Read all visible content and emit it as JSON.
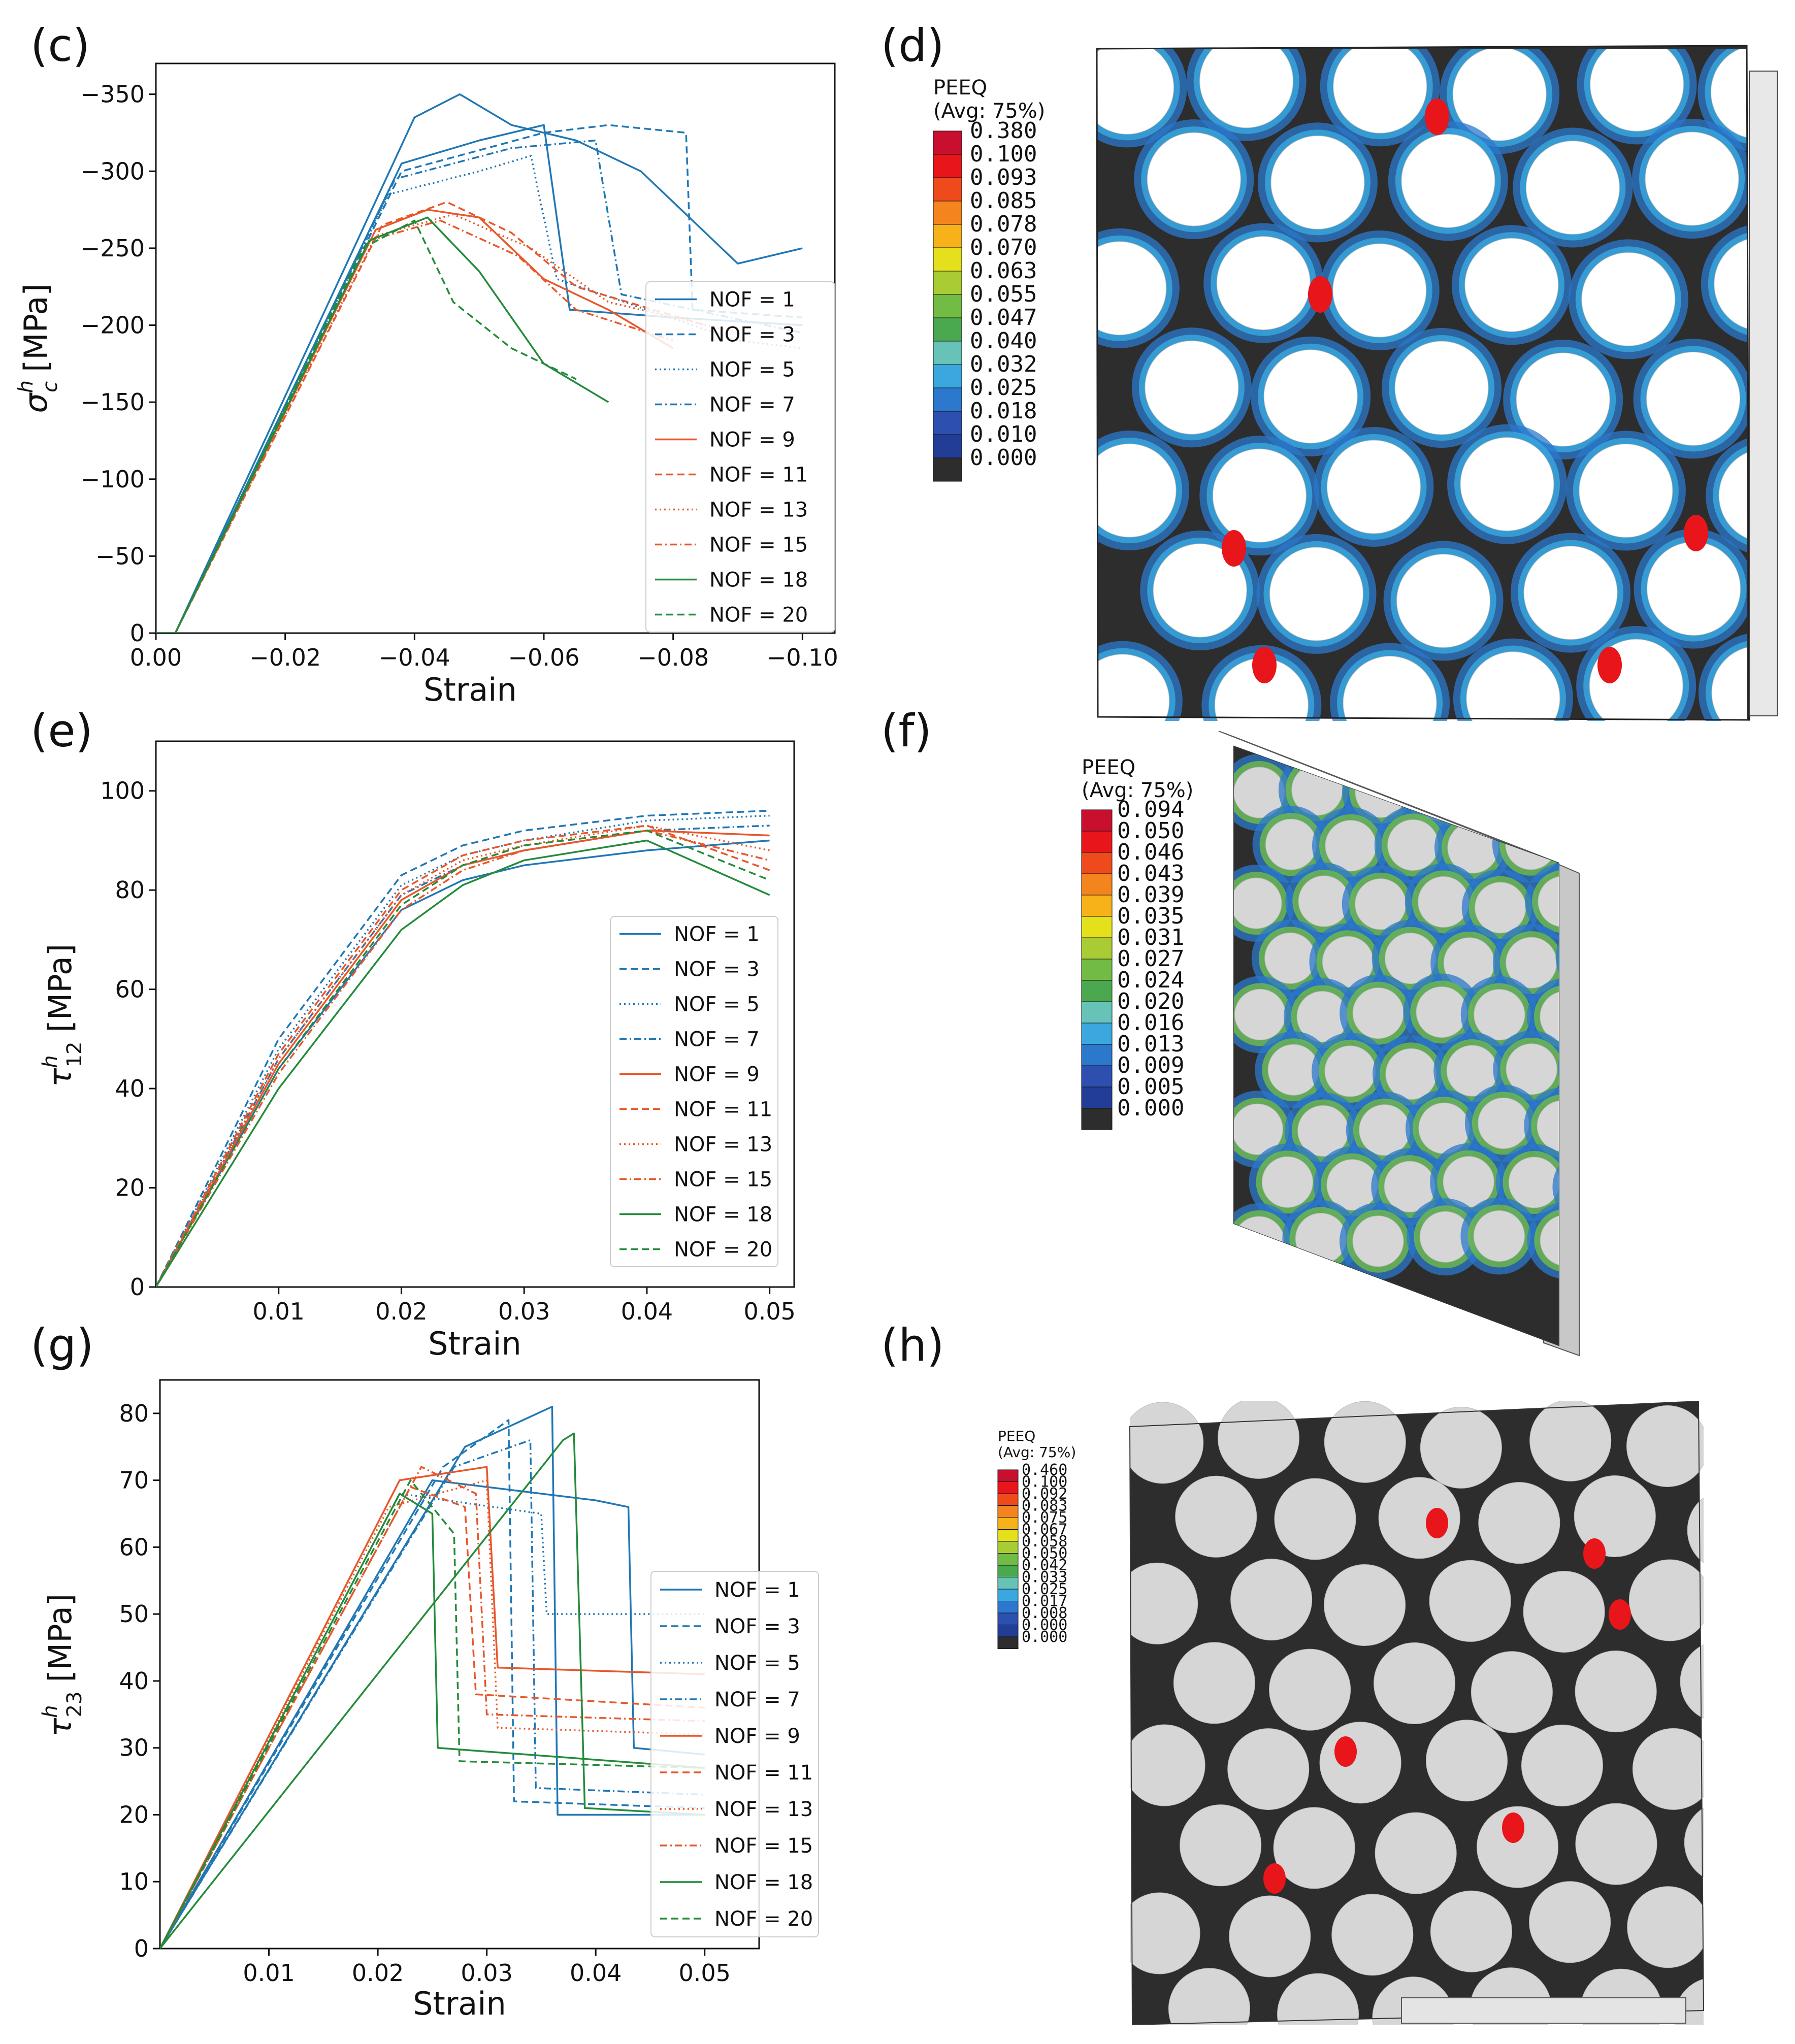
{
  "colors": {
    "blue": "#1f77b4",
    "orange": "#e8562a",
    "green": "#238b3a",
    "matrix_dark": "#2d2d2d",
    "fiber_white": "#ffffff",
    "fiber_gray": "#d6d6d6"
  },
  "chart_data": [
    {
      "panel": "(c)",
      "type": "line",
      "xlabel": "Strain",
      "ylabel": "σ",
      "ylabel_sup": "h",
      "ylabel_sub": "c",
      "ylabel_unit": "[MPa]",
      "xlim": [
        0.0,
        -0.105
      ],
      "ylim": [
        0,
        -370
      ],
      "xticks": [
        0.0,
        -0.02,
        -0.04,
        -0.06,
        -0.08,
        -0.1
      ],
      "xtick_labels": [
        "0.00",
        "−0.02",
        "−0.04",
        "−0.06",
        "−0.08",
        "−0.10"
      ],
      "yticks": [
        0,
        -50,
        -100,
        -150,
        -200,
        -250,
        -300,
        -350
      ],
      "ytick_labels": [
        "0",
        "−50",
        "−100",
        "−150",
        "−200",
        "−250",
        "−300",
        "−350"
      ],
      "legend": [
        "NOF = 1",
        "NOF = 3",
        "NOF = 5",
        "NOF = 7",
        "NOF = 9",
        "NOF = 11",
        "NOF = 13",
        "NOF = 15",
        "NOF = 18",
        "NOF = 20"
      ],
      "series": [
        {
          "name": "NOF = 1",
          "style": "solid",
          "color": "blue",
          "x": [
            0,
            -0.003,
            -0.04,
            -0.047,
            -0.055,
            -0.065,
            -0.075,
            -0.09,
            -0.1
          ],
          "y": [
            0,
            0,
            -335,
            -350,
            -330,
            -320,
            -300,
            -240,
            -250
          ]
        },
        {
          "name": "NOF = 1",
          "style": "solid",
          "color": "blue",
          "x": [
            0,
            -0.003,
            -0.038,
            -0.05,
            -0.06,
            -0.064,
            -0.08,
            -0.1
          ],
          "y": [
            0,
            0,
            -305,
            -320,
            -330,
            -210,
            -205,
            -200
          ]
        },
        {
          "name": "NOF = 3",
          "style": "dashed",
          "color": "blue",
          "x": [
            0,
            -0.003,
            -0.038,
            -0.06,
            -0.07,
            -0.082,
            -0.083,
            -0.1
          ],
          "y": [
            0,
            0,
            -300,
            -325,
            -330,
            -325,
            -210,
            -205
          ]
        },
        {
          "name": "NOF = 5",
          "style": "dotted",
          "color": "blue",
          "x": [
            0,
            -0.003,
            -0.036,
            -0.05,
            -0.058,
            -0.062,
            -0.09,
            -0.1
          ],
          "y": [
            0,
            0,
            -285,
            -300,
            -310,
            -230,
            -190,
            -185
          ]
        },
        {
          "name": "NOF = 7",
          "style": "dashdot",
          "color": "blue",
          "x": [
            0,
            -0.003,
            -0.037,
            -0.055,
            -0.068,
            -0.072,
            -0.1
          ],
          "y": [
            0,
            0,
            -295,
            -315,
            -320,
            -220,
            -195
          ]
        },
        {
          "name": "NOF = 9",
          "style": "solid",
          "color": "orange",
          "x": [
            0,
            -0.003,
            -0.034,
            -0.042,
            -0.05,
            -0.06,
            -0.07,
            -0.08
          ],
          "y": [
            0,
            0,
            -262,
            -275,
            -270,
            -230,
            -210,
            -185
          ]
        },
        {
          "name": "NOF = 11",
          "style": "dashed",
          "color": "orange",
          "x": [
            0,
            -0.003,
            -0.035,
            -0.045,
            -0.055,
            -0.065,
            -0.085
          ],
          "y": [
            0,
            0,
            -265,
            -280,
            -260,
            -225,
            -200
          ]
        },
        {
          "name": "NOF = 13",
          "style": "dotted",
          "color": "orange",
          "x": [
            0,
            -0.003,
            -0.034,
            -0.046,
            -0.058,
            -0.07,
            -0.09
          ],
          "y": [
            0,
            0,
            -258,
            -272,
            -250,
            -215,
            -195
          ]
        },
        {
          "name": "NOF = 15",
          "style": "dashdot",
          "color": "orange",
          "x": [
            0,
            -0.003,
            -0.033,
            -0.044,
            -0.056,
            -0.065,
            -0.08
          ],
          "y": [
            0,
            0,
            -255,
            -268,
            -245,
            -210,
            -190
          ]
        },
        {
          "name": "NOF = 18",
          "style": "solid",
          "color": "green",
          "x": [
            0,
            -0.003,
            -0.033,
            -0.042,
            -0.05,
            -0.06,
            -0.07
          ],
          "y": [
            0,
            0,
            -255,
            -270,
            -235,
            -175,
            -150
          ]
        },
        {
          "name": "NOF = 20",
          "style": "dashed",
          "color": "green",
          "x": [
            0,
            -0.003,
            -0.032,
            -0.04,
            -0.046,
            -0.055,
            -0.065
          ],
          "y": [
            0,
            0,
            -250,
            -268,
            -215,
            -185,
            -165
          ]
        }
      ]
    },
    {
      "panel": "(e)",
      "type": "line",
      "xlabel": "Strain",
      "ylabel": "τ",
      "ylabel_sup": "h",
      "ylabel_sub": "12",
      "ylabel_unit": "[MPa]",
      "xlim": [
        0.0,
        0.052
      ],
      "ylim": [
        0,
        110
      ],
      "xticks": [
        0.01,
        0.02,
        0.03,
        0.04,
        0.05
      ],
      "xtick_labels": [
        "0.01",
        "0.02",
        "0.03",
        "0.04",
        "0.05"
      ],
      "yticks": [
        0,
        20,
        40,
        60,
        80,
        100
      ],
      "ytick_labels": [
        "0",
        "20",
        "40",
        "60",
        "80",
        "100"
      ],
      "legend": [
        "NOF = 1",
        "NOF = 3",
        "NOF = 5",
        "NOF = 7",
        "NOF = 9",
        "NOF = 11",
        "NOF = 13",
        "NOF = 15",
        "NOF = 18",
        "NOF = 20"
      ],
      "series": [
        {
          "name": "NOF = 1",
          "style": "solid",
          "color": "blue",
          "x": [
            0,
            0.01,
            0.02,
            0.025,
            0.03,
            0.04,
            0.05
          ],
          "y": [
            0,
            44,
            76,
            82,
            85,
            88,
            90
          ]
        },
        {
          "name": "NOF = 3",
          "style": "dashed",
          "color": "blue",
          "x": [
            0,
            0.01,
            0.02,
            0.025,
            0.03,
            0.04,
            0.05
          ],
          "y": [
            0,
            50,
            83,
            89,
            92,
            95,
            96
          ]
        },
        {
          "name": "NOF = 5",
          "style": "dotted",
          "color": "blue",
          "x": [
            0,
            0.01,
            0.02,
            0.025,
            0.03,
            0.04,
            0.05
          ],
          "y": [
            0,
            48,
            81,
            87,
            90,
            94,
            95
          ]
        },
        {
          "name": "NOF = 7",
          "style": "dashdot",
          "color": "blue",
          "x": [
            0,
            0.01,
            0.02,
            0.025,
            0.03,
            0.04,
            0.05
          ],
          "y": [
            0,
            46,
            79,
            85,
            88,
            92,
            93
          ]
        },
        {
          "name": "NOF = 9",
          "style": "solid",
          "color": "orange",
          "x": [
            0,
            0.01,
            0.02,
            0.025,
            0.03,
            0.04,
            0.05
          ],
          "y": [
            0,
            45,
            78,
            85,
            88,
            92,
            91
          ]
        },
        {
          "name": "NOF = 11",
          "style": "dashed",
          "color": "orange",
          "x": [
            0,
            0.01,
            0.02,
            0.025,
            0.03,
            0.04,
            0.05
          ],
          "y": [
            0,
            47,
            80,
            87,
            90,
            93,
            84
          ]
        },
        {
          "name": "NOF = 13",
          "style": "dotted",
          "color": "orange",
          "x": [
            0,
            0.01,
            0.02,
            0.025,
            0.03,
            0.04,
            0.05
          ],
          "y": [
            0,
            46,
            79,
            86,
            89,
            93,
            88
          ]
        },
        {
          "name": "NOF = 15",
          "style": "dashdot",
          "color": "orange",
          "x": [
            0,
            0.01,
            0.02,
            0.025,
            0.03,
            0.04,
            0.05
          ],
          "y": [
            0,
            43,
            76,
            84,
            88,
            92,
            86
          ]
        },
        {
          "name": "NOF = 18",
          "style": "solid",
          "color": "green",
          "x": [
            0,
            0.01,
            0.02,
            0.025,
            0.03,
            0.04,
            0.05
          ],
          "y": [
            0,
            40,
            72,
            81,
            86,
            90,
            79
          ]
        },
        {
          "name": "NOF = 20",
          "style": "dashed",
          "color": "green",
          "x": [
            0,
            0.01,
            0.02,
            0.025,
            0.03,
            0.04,
            0.05
          ],
          "y": [
            0,
            44,
            77,
            85,
            89,
            92,
            82
          ]
        }
      ]
    },
    {
      "panel": "(g)",
      "type": "line",
      "xlabel": "Strain",
      "ylabel": "τ",
      "ylabel_sup": "h",
      "ylabel_sub": "23",
      "ylabel_unit": "[MPa]",
      "xlim": [
        0.0,
        0.055
      ],
      "ylim": [
        0,
        85
      ],
      "xticks": [
        0.01,
        0.02,
        0.03,
        0.04,
        0.05
      ],
      "xtick_labels": [
        "0.01",
        "0.02",
        "0.03",
        "0.04",
        "0.05"
      ],
      "yticks": [
        0,
        10,
        20,
        30,
        40,
        50,
        60,
        70,
        80
      ],
      "ytick_labels": [
        "0",
        "10",
        "20",
        "30",
        "40",
        "50",
        "60",
        "70",
        "80"
      ],
      "legend": [
        "NOF = 1",
        "NOF = 3",
        "NOF = 5",
        "NOF = 7",
        "NOF = 9",
        "NOF = 11",
        "NOF = 13",
        "NOF = 15",
        "NOF = 18",
        "NOF = 20"
      ],
      "series": [
        {
          "name": "NOF = 1",
          "style": "solid",
          "color": "blue",
          "x": [
            0,
            0.028,
            0.036,
            0.0365,
            0.05
          ],
          "y": [
            0,
            75,
            81,
            20,
            20
          ]
        },
        {
          "name": "NOF = 1",
          "style": "solid",
          "color": "blue",
          "x": [
            0,
            0.025,
            0.04,
            0.043,
            0.0435,
            0.05
          ],
          "y": [
            0,
            70,
            67,
            66,
            30,
            29
          ]
        },
        {
          "name": "NOF = 3",
          "style": "dashed",
          "color": "blue",
          "x": [
            0,
            0.026,
            0.032,
            0.0325,
            0.05
          ],
          "y": [
            0,
            72,
            79,
            22,
            21
          ]
        },
        {
          "name": "NOF = 5",
          "style": "dotted",
          "color": "blue",
          "x": [
            0,
            0.022,
            0.035,
            0.0355,
            0.05
          ],
          "y": [
            0,
            68,
            65,
            50,
            50
          ]
        },
        {
          "name": "NOF = 7",
          "style": "dashdot",
          "color": "blue",
          "x": [
            0,
            0.027,
            0.034,
            0.0345,
            0.05
          ],
          "y": [
            0,
            72,
            76,
            24,
            23
          ]
        },
        {
          "name": "NOF = 9",
          "style": "solid",
          "color": "orange",
          "x": [
            0,
            0.022,
            0.03,
            0.031,
            0.05
          ],
          "y": [
            0,
            70,
            72,
            42,
            41
          ]
        },
        {
          "name": "NOF = 11",
          "style": "dashed",
          "color": "orange",
          "x": [
            0,
            0.023,
            0.028,
            0.029,
            0.05
          ],
          "y": [
            0,
            69,
            66,
            38,
            36
          ]
        },
        {
          "name": "NOF = 13",
          "style": "dotted",
          "color": "orange",
          "x": [
            0,
            0.021,
            0.03,
            0.031,
            0.05
          ],
          "y": [
            0,
            66,
            70,
            33,
            32
          ]
        },
        {
          "name": "NOF = 15",
          "style": "dashdot",
          "color": "orange",
          "x": [
            0,
            0.024,
            0.029,
            0.03,
            0.05
          ],
          "y": [
            0,
            72,
            68,
            35,
            34
          ]
        },
        {
          "name": "NOF = 18",
          "style": "solid",
          "color": "green",
          "x": [
            0,
            0.022,
            0.025,
            0.0255,
            0.05
          ],
          "y": [
            0,
            68,
            65,
            30,
            27
          ]
        },
        {
          "name": "NOF = 18",
          "style": "solid",
          "color": "green",
          "x": [
            0,
            0.037,
            0.038,
            0.039,
            0.05
          ],
          "y": [
            0,
            76,
            77,
            21,
            20
          ]
        },
        {
          "name": "NOF = 20",
          "style": "dashed",
          "color": "green",
          "x": [
            0,
            0.023,
            0.027,
            0.0275,
            0.05
          ],
          "y": [
            0,
            70,
            62,
            28,
            27
          ]
        }
      ]
    }
  ],
  "contours": [
    {
      "panel": "(d)",
      "legend_title": "PEEQ",
      "legend_subtitle": "(Avg: 75%)",
      "values": [
        "0.380",
        "0.100",
        "0.093",
        "0.085",
        "0.078",
        "0.070",
        "0.063",
        "0.055",
        "0.047",
        "0.040",
        "0.032",
        "0.025",
        "0.018",
        "0.010",
        "0.000"
      ]
    },
    {
      "panel": "(f)",
      "legend_title": "PEEQ",
      "legend_subtitle": "(Avg: 75%)",
      "values": [
        "0.094",
        "0.050",
        "0.046",
        "0.043",
        "0.039",
        "0.035",
        "0.031",
        "0.027",
        "0.024",
        "0.020",
        "0.016",
        "0.013",
        "0.009",
        "0.005",
        "0.000"
      ]
    },
    {
      "panel": "(h)",
      "legend_title": "PEEQ",
      "legend_subtitle": "(Avg: 75%)",
      "values": [
        "0.460",
        "0.100",
        "0.092",
        "0.083",
        "0.075",
        "0.067",
        "0.058",
        "0.050",
        "0.042",
        "0.033",
        "0.025",
        "0.017",
        "0.008",
        "0.000",
        "0.000"
      ]
    }
  ],
  "colorbar_colors": [
    "#c8102e",
    "#e8151a",
    "#ef4a1c",
    "#f3841e",
    "#f7b21a",
    "#e4e11c",
    "#a9cc34",
    "#72bb45",
    "#4aa84f",
    "#67c3b7",
    "#3aa8df",
    "#2b78cc",
    "#2d4fb0",
    "#213d95",
    "#2d2d2d"
  ]
}
